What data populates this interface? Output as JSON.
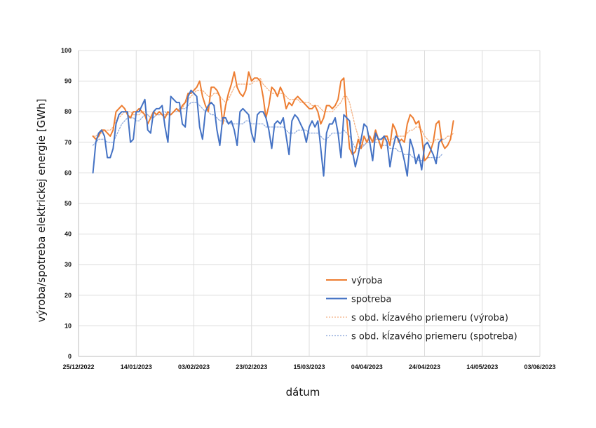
{
  "chart_data": {
    "type": "line",
    "xlabel": "dátum",
    "ylabel": "výroba/spotreba elektrickej energie [GWh]",
    "ylim": [
      0,
      100
    ],
    "yticks": [
      0,
      10,
      20,
      30,
      40,
      50,
      60,
      70,
      80,
      90,
      100
    ],
    "xlim": [
      "2022-12-25",
      "2023-06-03"
    ],
    "xticks": [
      "25/12/2022",
      "14/01/2023",
      "03/02/2023",
      "23/02/2023",
      "15/03/2023",
      "04/04/2023",
      "24/04/2023",
      "14/05/2023",
      "03/06/2023"
    ],
    "grid": true,
    "legend_position": "bottom-right",
    "x_start": "2022-12-30",
    "series": [
      {
        "name": "výroba",
        "color": "#ed7d31",
        "style": "solid",
        "values": [
          72,
          71,
          72,
          74,
          74,
          73,
          72,
          74,
          80,
          81,
          82,
          81,
          79,
          78,
          80,
          80,
          81,
          80,
          79,
          76,
          78,
          80,
          79,
          80,
          79,
          78,
          80,
          79,
          80,
          81,
          80,
          82,
          83,
          86,
          86,
          87,
          88,
          90,
          85,
          82,
          80,
          88,
          88,
          87,
          85,
          76,
          82,
          86,
          89,
          93,
          88,
          86,
          85,
          87,
          93,
          90,
          91,
          91,
          90,
          85,
          78,
          82,
          88,
          87,
          85,
          88,
          86,
          81,
          83,
          82,
          84,
          85,
          84,
          83,
          82,
          81,
          81,
          82,
          80,
          76,
          78,
          82,
          82,
          81,
          82,
          84,
          90,
          91,
          78,
          68,
          66,
          67,
          71,
          68,
          72,
          70,
          72,
          70,
          74,
          71,
          68,
          72,
          72,
          69,
          76,
          74,
          70,
          71,
          70,
          76,
          79,
          78,
          76,
          77,
          72,
          64,
          65,
          67,
          70,
          76,
          77,
          70,
          68,
          69,
          71,
          77
        ]
      },
      {
        "name": "spotreba",
        "color": "#4472c4",
        "style": "solid",
        "values": [
          60,
          70,
          73,
          74,
          72,
          65,
          65,
          68,
          76,
          79,
          80,
          80,
          80,
          70,
          71,
          80,
          80,
          82,
          84,
          74,
          73,
          80,
          81,
          81,
          82,
          75,
          70,
          85,
          84,
          83,
          83,
          76,
          75,
          85,
          87,
          86,
          85,
          75,
          71,
          80,
          82,
          83,
          82,
          74,
          69,
          78,
          78,
          76,
          77,
          74,
          69,
          80,
          81,
          80,
          79,
          73,
          70,
          79,
          80,
          80,
          78,
          74,
          68,
          76,
          77,
          76,
          78,
          72,
          66,
          77,
          79,
          78,
          76,
          74,
          70,
          75,
          77,
          75,
          77,
          68,
          59,
          73,
          76,
          76,
          78,
          73,
          65,
          79,
          78,
          77,
          67,
          62,
          66,
          71,
          76,
          75,
          70,
          64,
          73,
          71,
          71,
          72,
          70,
          62,
          68,
          72,
          71,
          68,
          64,
          59,
          71,
          68,
          63,
          66,
          61,
          69,
          70,
          68,
          66,
          63,
          70,
          71
        ]
      },
      {
        "name": "s obd. kĺzavého priemeru (výroba)",
        "color": "#f4b183",
        "style": "dotted",
        "values": [
          72,
          72,
          73,
          73,
          74,
          74,
          74,
          75,
          77,
          78,
          79,
          80,
          80,
          80,
          79,
          79,
          79,
          80,
          80,
          79,
          78,
          78,
          79,
          79,
          79,
          79,
          79,
          79,
          80,
          80,
          81,
          81,
          83,
          84,
          85,
          86,
          87,
          87,
          87,
          86,
          85,
          85,
          86,
          86,
          85,
          84,
          83,
          84,
          86,
          88,
          89,
          89,
          89,
          89,
          89,
          89,
          90,
          90,
          91,
          89,
          88,
          87,
          86,
          86,
          86,
          86,
          86,
          85,
          84,
          84,
          84,
          84,
          83,
          83,
          83,
          83,
          82,
          82,
          82,
          81,
          80,
          80,
          80,
          80,
          81,
          82,
          83,
          85,
          85,
          83,
          79,
          75,
          72,
          70,
          69,
          70,
          70,
          70,
          71,
          71,
          71,
          71,
          71,
          71,
          71,
          72,
          72,
          72,
          72,
          73,
          74,
          74,
          75,
          75,
          74,
          72,
          71,
          70,
          70,
          71,
          71,
          71,
          71,
          72,
          72,
          73
        ]
      },
      {
        "name": "s obd. kĺzavého priemeru (spotreba)",
        "color": "#8faadc",
        "style": "dotted",
        "values": [
          69,
          70,
          71,
          71,
          71,
          70,
          70,
          70,
          72,
          74,
          76,
          77,
          78,
          78,
          78,
          77,
          77,
          78,
          79,
          79,
          78,
          78,
          79,
          79,
          80,
          80,
          79,
          79,
          80,
          80,
          81,
          81,
          81,
          82,
          83,
          83,
          83,
          82,
          81,
          80,
          80,
          79,
          79,
          78,
          77,
          77,
          77,
          76,
          76,
          76,
          76,
          76,
          76,
          77,
          77,
          76,
          76,
          76,
          76,
          76,
          75,
          75,
          75,
          75,
          75,
          75,
          75,
          74,
          73,
          73,
          73,
          74,
          74,
          74,
          74,
          73,
          73,
          73,
          73,
          72,
          71,
          71,
          72,
          73,
          73,
          73,
          73,
          74,
          73,
          72,
          70,
          68,
          68,
          68,
          69,
          70,
          70,
          70,
          70,
          70,
          69,
          69,
          69,
          68,
          68,
          68,
          67,
          67,
          66,
          66,
          66,
          65,
          65,
          64,
          64,
          64,
          65,
          65,
          65,
          65,
          65,
          66
        ]
      }
    ]
  }
}
